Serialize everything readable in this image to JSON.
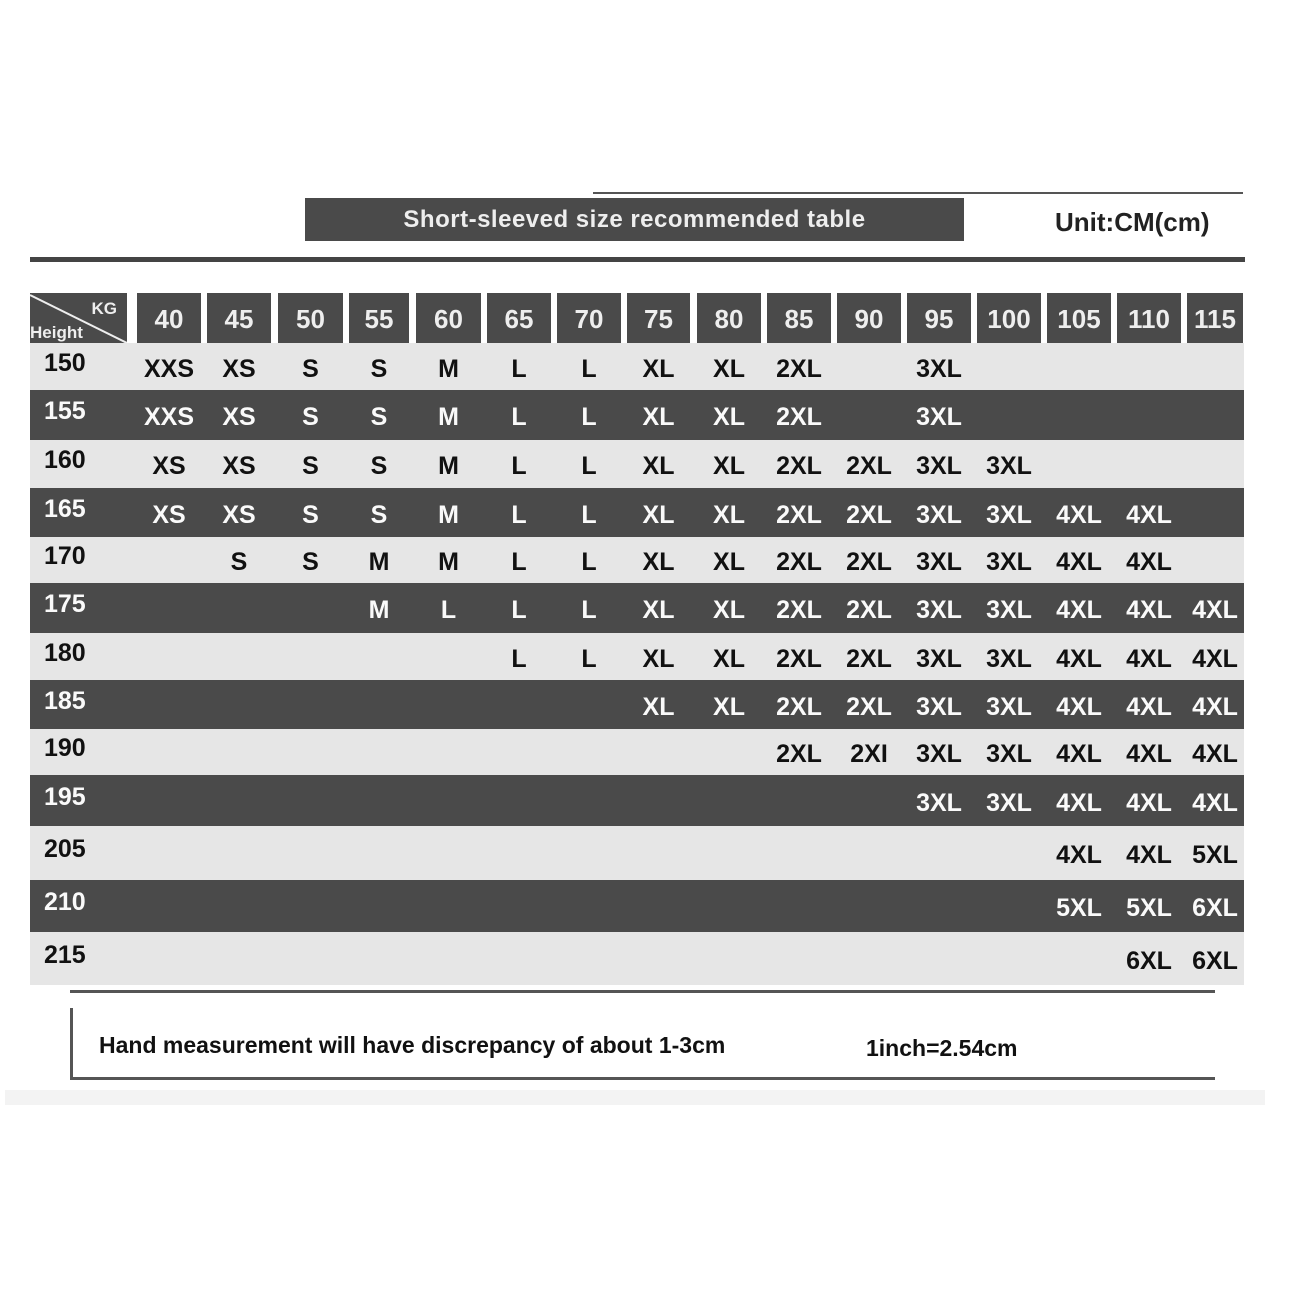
{
  "title": "Short-sleeved size recommended table",
  "unit": "Unit:CM(cm)",
  "corner": {
    "top_label": "KG",
    "bottom_label": "Height"
  },
  "weights": [
    "40",
    "45",
    "50",
    "55",
    "60",
    "65",
    "70",
    "75",
    "80",
    "85",
    "90",
    "95",
    "100",
    "105",
    "110",
    "115"
  ],
  "rows": [
    {
      "height": "150",
      "sizes": [
        "XXS",
        "XS",
        "S",
        "S",
        "M",
        "L",
        "L",
        "XL",
        "XL",
        "2XL",
        "",
        "3XL",
        "",
        "",
        "",
        ""
      ]
    },
    {
      "height": "155",
      "sizes": [
        "XXS",
        "XS",
        "S",
        "S",
        "M",
        "L",
        "L",
        "XL",
        "XL",
        "2XL",
        "",
        "3XL",
        "",
        "",
        "",
        ""
      ]
    },
    {
      "height": "160",
      "sizes": [
        "XS",
        "XS",
        "S",
        "S",
        "M",
        "L",
        "L",
        "XL",
        "XL",
        "2XL",
        "2XL",
        "3XL",
        "3XL",
        "",
        "",
        ""
      ]
    },
    {
      "height": "165",
      "sizes": [
        "XS",
        "XS",
        "S",
        "S",
        "M",
        "L",
        "L",
        "XL",
        "XL",
        "2XL",
        "2XL",
        "3XL",
        "3XL",
        "4XL",
        "4XL",
        ""
      ]
    },
    {
      "height": "170",
      "sizes": [
        "",
        "S",
        "S",
        "M",
        "M",
        "L",
        "L",
        "XL",
        "XL",
        "2XL",
        "2XL",
        "3XL",
        "3XL",
        "4XL",
        "4XL",
        ""
      ]
    },
    {
      "height": "175",
      "sizes": [
        "",
        "",
        "",
        "M",
        "L",
        "L",
        "L",
        "XL",
        "XL",
        "2XL",
        "2XL",
        "3XL",
        "3XL",
        "4XL",
        "4XL",
        "4XL"
      ]
    },
    {
      "height": "180",
      "sizes": [
        "",
        "",
        "",
        "",
        "",
        "L",
        "L",
        "XL",
        "XL",
        "2XL",
        "2XL",
        "3XL",
        "3XL",
        "4XL",
        "4XL",
        "4XL"
      ]
    },
    {
      "height": "185",
      "sizes": [
        "",
        "",
        "",
        "",
        "",
        "",
        "",
        "XL",
        "XL",
        "2XL",
        "2XL",
        "3XL",
        "3XL",
        "4XL",
        "4XL",
        "4XL"
      ]
    },
    {
      "height": "190",
      "sizes": [
        "",
        "",
        "",
        "",
        "",
        "",
        "",
        "",
        "",
        "2XL",
        "2XI",
        "3XL",
        "3XL",
        "4XL",
        "4XL",
        "4XL"
      ]
    },
    {
      "height": "195",
      "sizes": [
        "",
        "",
        "",
        "",
        "",
        "",
        "",
        "",
        "",
        "",
        "",
        "3XL",
        "3XL",
        "4XL",
        "4XL",
        "4XL"
      ]
    },
    {
      "height": "205",
      "sizes": [
        "",
        "",
        "",
        "",
        "",
        "",
        "",
        "",
        "",
        "",
        "",
        "",
        "",
        "4XL",
        "4XL",
        "5XL"
      ]
    },
    {
      "height": "210",
      "sizes": [
        "",
        "",
        "",
        "",
        "",
        "",
        "",
        "",
        "",
        "",
        "",
        "",
        "",
        "5XL",
        "5XL",
        "6XL"
      ]
    },
    {
      "height": "215",
      "sizes": [
        "",
        "",
        "",
        "",
        "",
        "",
        "",
        "",
        "",
        "",
        "",
        "",
        "",
        "",
        "6XL",
        "6XL"
      ]
    }
  ],
  "footer": {
    "note": "Hand measurement will have discrepancy of about  1-3cm",
    "conversion": "1inch=2.54cm"
  },
  "colors": {
    "dark_row": "#4a4a4a",
    "light_row": "#e6e6e6"
  }
}
